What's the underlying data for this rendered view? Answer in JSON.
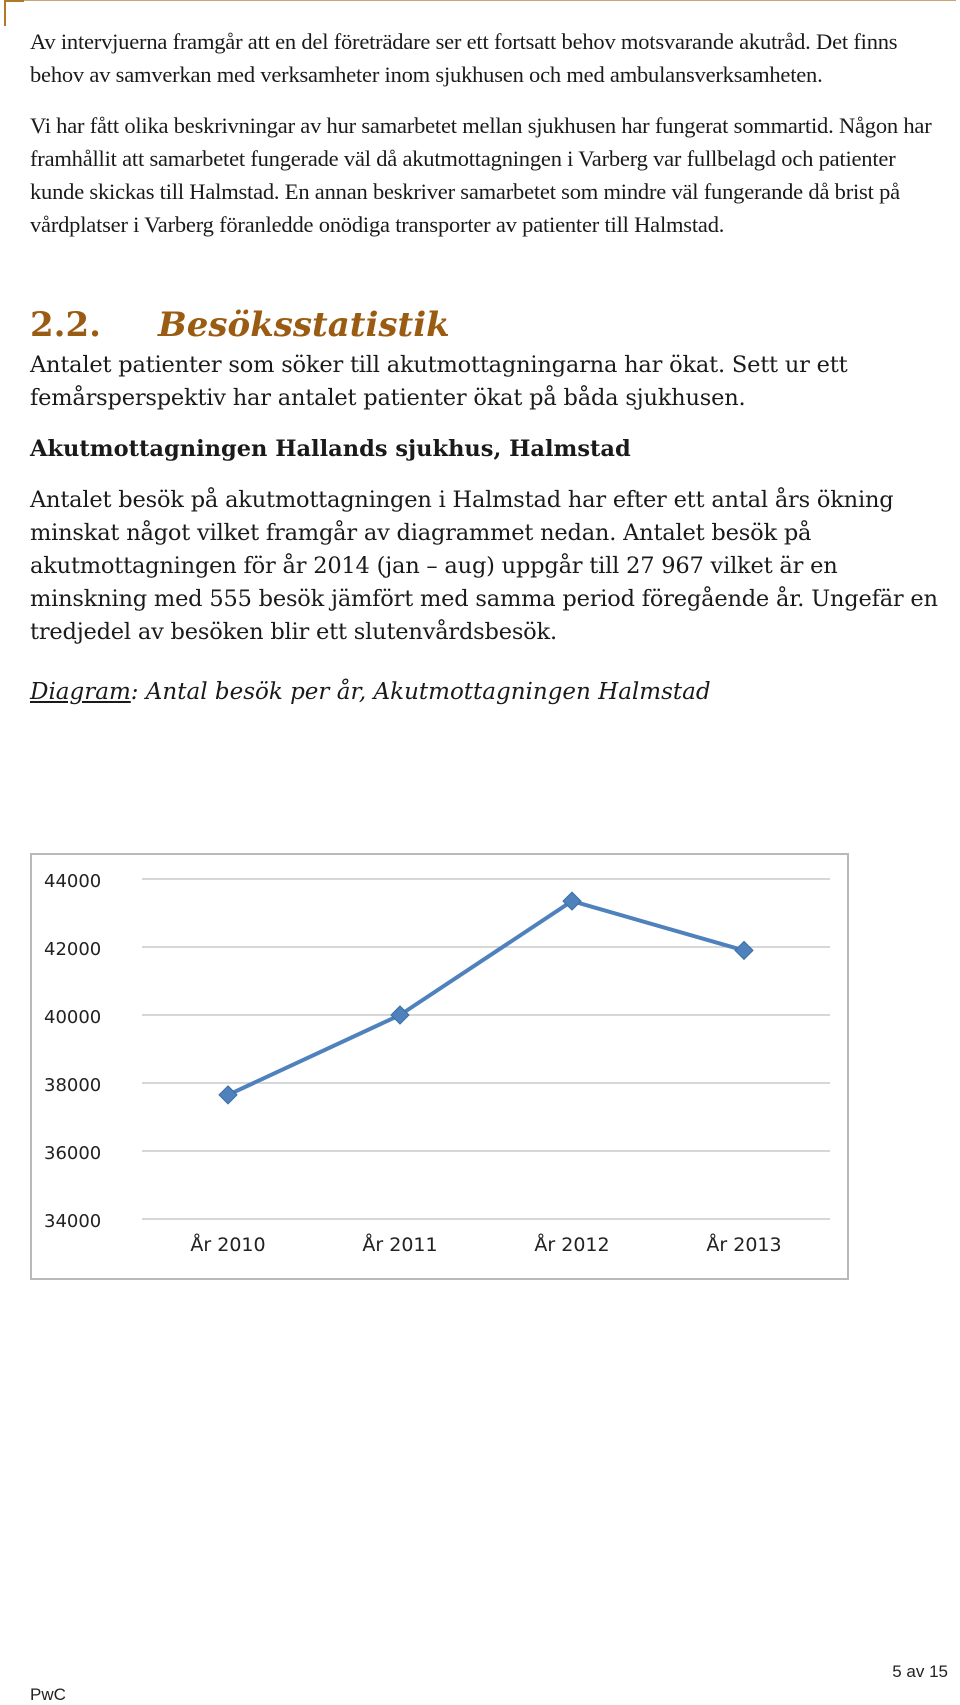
{
  "paragraphs_top": [
    "Av intervjuerna framgår att en del företrädare ser ett fortsatt behov motsvarande akutråd. Det finns behov av samverkan med verksamheter inom sjukhusen och med ambulansverksamheten.",
    "Vi har fått olika beskrivningar av hur samarbetet mellan sjukhusen har fungerat sommartid. Någon har framhållit att samarbetet fungerade väl då akutmottagningen i Varberg var fullbelagd och patienter kunde skickas till Halmstad. En annan beskriver samarbetet som mindre väl fungerande då brist på vårdplatser i Varberg föranledde onödiga transporter av patienter till Halmstad."
  ],
  "section": {
    "number": "2.2.",
    "title": "Besöksstatistik",
    "intro": "Antalet patienter som söker till akutmottagningarna har ökat. Sett ur ett femårsperspektiv har antalet patienter ökat på båda sjukhusen."
  },
  "subheading": "Akutmottagningen Hallands sjukhus, Halmstad",
  "paragraph_stats": "Antalet besök på akutmottagningen i Halmstad har efter ett antal års ökning minskat något vilket framgår av diagrammet nedan. Antalet besök på akutmottagningen för år 2014 (jan – aug) uppgår till 27 967 vilket är en minskning med 555 besök jämfört med samma period föregående år. Ungefär en tredjedel av besöken blir ett slutenvårdsbesök.",
  "caption": {
    "label": "Diagram",
    "text": ": Antal besök per år, Akutmottagningen Halmstad"
  },
  "chart_data": {
    "type": "line",
    "categories": [
      "År 2010",
      "År 2011",
      "År 2012",
      "År 2013"
    ],
    "series": [
      {
        "values": [
          37650,
          40000,
          43350,
          41900
        ],
        "color": "#4f81bd",
        "marker": "diamond"
      }
    ],
    "ylim": [
      34000,
      44000
    ],
    "yticks": [
      44000,
      42000,
      40000,
      38000,
      36000,
      34000
    ],
    "grid": true,
    "legend": "none"
  },
  "footer": {
    "page": "5 av 15",
    "brand": "PwC"
  }
}
